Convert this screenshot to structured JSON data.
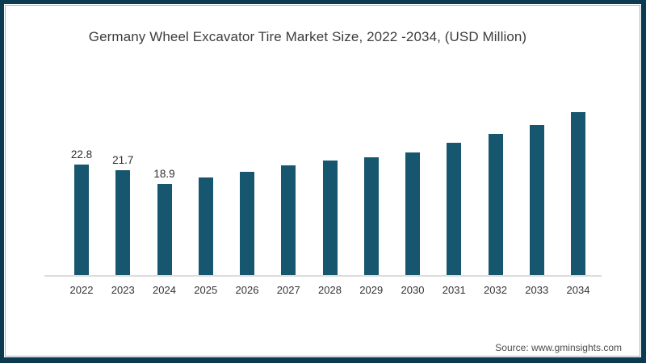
{
  "frame": {
    "border_color": "#0c3b51",
    "inner_line_color": "#a8c2cd"
  },
  "chart_data": {
    "type": "bar",
    "title": "Germany Wheel Excavator Tire Market Size, 2022 -2034, (USD Million)",
    "xlabel": "",
    "ylabel": "",
    "categories": [
      "2022",
      "2023",
      "2024",
      "2025",
      "2026",
      "2027",
      "2028",
      "2029",
      "2030",
      "2031",
      "2032",
      "2033",
      "2034"
    ],
    "values": [
      22.8,
      21.7,
      18.9,
      20.2,
      21.3,
      22.6,
      23.7,
      24.3,
      25.4,
      27.3,
      29.1,
      31.0,
      33.6
    ],
    "data_labels": [
      "22.8",
      "21.7",
      "18.9",
      "",
      "",
      "",
      "",
      "",
      "",
      "",
      "",
      "",
      ""
    ],
    "bar_color": "#16566e",
    "axis_line_color": "#dcdcdc",
    "label_color": "#2f2f2f",
    "title_color": "#3d3d3d",
    "ylim": [
      0,
      35
    ],
    "grid": false,
    "legend": "none"
  },
  "footer": {
    "source_label": "Source: www.gminsights.com"
  }
}
